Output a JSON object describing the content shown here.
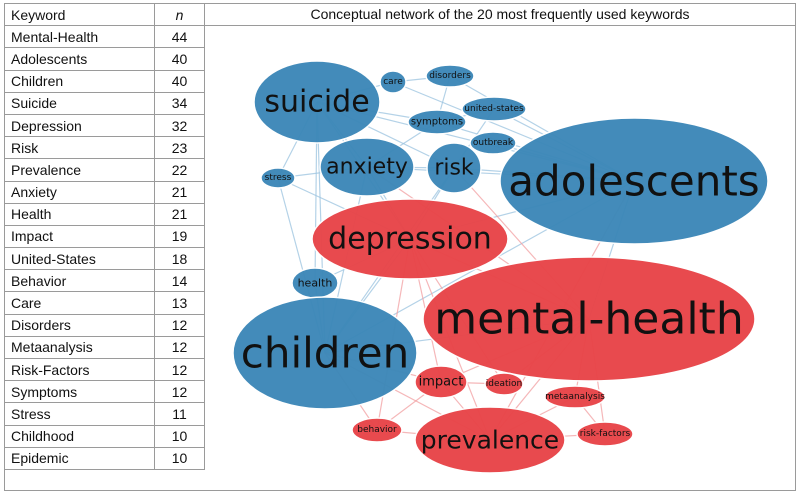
{
  "table": {
    "header_keyword": "Keyword",
    "header_n": "n",
    "rows": [
      {
        "keyword": "Mental-Health",
        "n": "44"
      },
      {
        "keyword": "Adolescents",
        "n": "40"
      },
      {
        "keyword": "Children",
        "n": "40"
      },
      {
        "keyword": "Suicide",
        "n": "34"
      },
      {
        "keyword": "Depression",
        "n": "32"
      },
      {
        "keyword": "Risk",
        "n": "23"
      },
      {
        "keyword": "Prevalence",
        "n": "22"
      },
      {
        "keyword": "Anxiety",
        "n": "21"
      },
      {
        "keyword": "Health",
        "n": "21"
      },
      {
        "keyword": "Impact",
        "n": "19"
      },
      {
        "keyword": "United-States",
        "n": "18"
      },
      {
        "keyword": "Behavior",
        "n": "14"
      },
      {
        "keyword": "Care",
        "n": "13"
      },
      {
        "keyword": "Disorders",
        "n": "12"
      },
      {
        "keyword": "Metaanalysis",
        "n": "12"
      },
      {
        "keyword": "Risk-Factors",
        "n": "12"
      },
      {
        "keyword": "Symptoms",
        "n": "12"
      },
      {
        "keyword": "Stress",
        "n": "11"
      },
      {
        "keyword": "Childhood",
        "n": "10"
      },
      {
        "keyword": "Epidemic",
        "n": "10"
      }
    ]
  },
  "network": {
    "title": "Conceptual network of the 20 most frequently used keywords",
    "colors": {
      "blue_cluster": "#3d88b8",
      "red_cluster": "#e84549",
      "edge_blue": "#9cc4e0",
      "edge_red": "#f2a0a2"
    },
    "blue_nodes": [
      "suicide",
      "care",
      "disorders",
      "symptoms",
      "united-states",
      "outbreak",
      "anxiety",
      "risk",
      "adolescents",
      "stress",
      "health",
      "children"
    ],
    "red_nodes": [
      "depression",
      "mental-health",
      "impact",
      "ideation",
      "metaanalysis",
      "behavior",
      "prevalence",
      "risk-factors"
    ]
  }
}
